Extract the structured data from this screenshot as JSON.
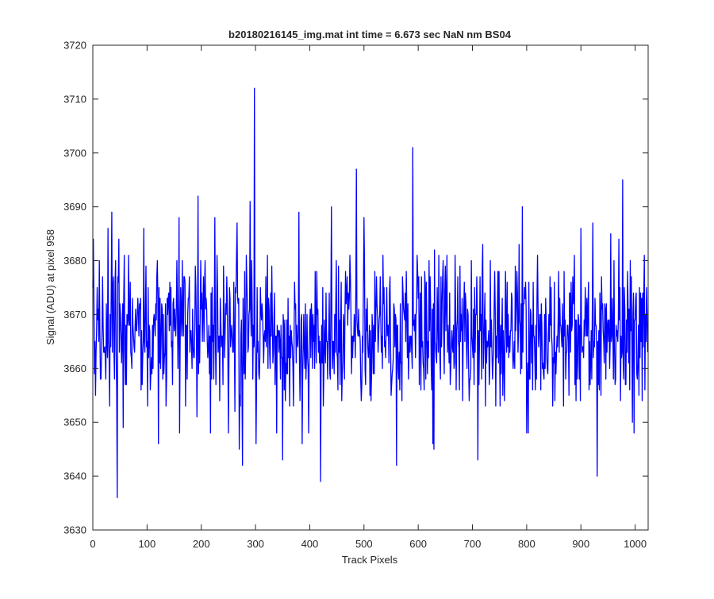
{
  "chart_data": {
    "type": "line",
    "title": "b20180216145_img.mat int time = 6.673 sec  NaN nm BS04",
    "xlabel": "Track Pixels",
    "ylabel": "Signal (ADU) at pixel 958",
    "xlim": [
      0,
      1024
    ],
    "ylim": [
      3630,
      3720
    ],
    "xticks": [
      0,
      100,
      200,
      300,
      400,
      500,
      600,
      700,
      800,
      900,
      1000
    ],
    "yticks": [
      3630,
      3640,
      3650,
      3660,
      3670,
      3680,
      3690,
      3700,
      3710,
      3720
    ],
    "grid": false,
    "line_color": "#0000ff",
    "noise_mean": 3667,
    "notable_points": [
      {
        "x": 1,
        "y": 3684
      },
      {
        "x": 5,
        "y": 3655
      },
      {
        "x": 28,
        "y": 3686
      },
      {
        "x": 35,
        "y": 3689
      },
      {
        "x": 45,
        "y": 3636
      },
      {
        "x": 48,
        "y": 3684
      },
      {
        "x": 56,
        "y": 3649
      },
      {
        "x": 94,
        "y": 3686
      },
      {
        "x": 121,
        "y": 3646
      },
      {
        "x": 159,
        "y": 3688
      },
      {
        "x": 160,
        "y": 3648
      },
      {
        "x": 192,
        "y": 3651
      },
      {
        "x": 194,
        "y": 3692
      },
      {
        "x": 217,
        "y": 3648
      },
      {
        "x": 225,
        "y": 3688
      },
      {
        "x": 250,
        "y": 3648
      },
      {
        "x": 262,
        "y": 3652
      },
      {
        "x": 266,
        "y": 3687
      },
      {
        "x": 270,
        "y": 3645
      },
      {
        "x": 276,
        "y": 3642
      },
      {
        "x": 290,
        "y": 3691
      },
      {
        "x": 298,
        "y": 3712
      },
      {
        "x": 301,
        "y": 3646
      },
      {
        "x": 330,
        "y": 3679
      },
      {
        "x": 339,
        "y": 3648
      },
      {
        "x": 350,
        "y": 3643
      },
      {
        "x": 380,
        "y": 3689
      },
      {
        "x": 386,
        "y": 3646
      },
      {
        "x": 398,
        "y": 3648
      },
      {
        "x": 413,
        "y": 3678
      },
      {
        "x": 420,
        "y": 3639
      },
      {
        "x": 440,
        "y": 3690
      },
      {
        "x": 449,
        "y": 3680
      },
      {
        "x": 486,
        "y": 3697
      },
      {
        "x": 500,
        "y": 3688
      },
      {
        "x": 530,
        "y": 3677
      },
      {
        "x": 560,
        "y": 3642
      },
      {
        "x": 590,
        "y": 3701
      },
      {
        "x": 627,
        "y": 3646
      },
      {
        "x": 629,
        "y": 3645
      },
      {
        "x": 630,
        "y": 3682
      },
      {
        "x": 653,
        "y": 3681
      },
      {
        "x": 668,
        "y": 3681
      },
      {
        "x": 710,
        "y": 3643
      },
      {
        "x": 719,
        "y": 3683
      },
      {
        "x": 733,
        "y": 3680
      },
      {
        "x": 786,
        "y": 3683
      },
      {
        "x": 792,
        "y": 3690
      },
      {
        "x": 800,
        "y": 3648
      },
      {
        "x": 803,
        "y": 3648
      },
      {
        "x": 820,
        "y": 3681
      },
      {
        "x": 852,
        "y": 3654
      },
      {
        "x": 900,
        "y": 3686
      },
      {
        "x": 922,
        "y": 3687
      },
      {
        "x": 930,
        "y": 3640
      },
      {
        "x": 955,
        "y": 3685
      },
      {
        "x": 970,
        "y": 3684
      },
      {
        "x": 977,
        "y": 3695
      },
      {
        "x": 995,
        "y": 3650
      },
      {
        "x": 998,
        "y": 3648
      },
      {
        "x": 1013,
        "y": 3654
      }
    ]
  }
}
